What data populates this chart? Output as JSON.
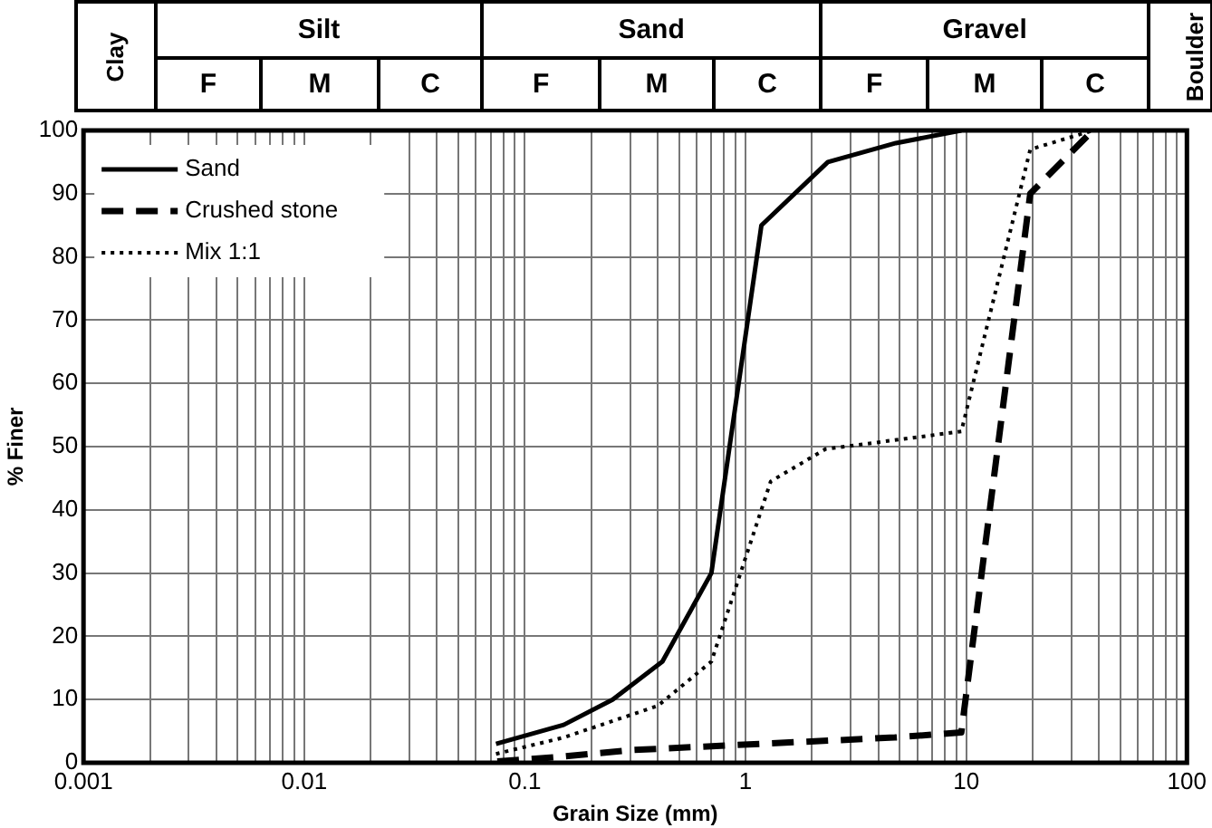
{
  "chart_data": {
    "type": "line",
    "xlabel": "Grain Size (mm)",
    "ylabel": "% Finer",
    "annotations": [
      "Clay",
      "Silt",
      "Sand",
      "Gravel",
      "Boulder",
      "F",
      "M",
      "C",
      "F",
      "M",
      "C",
      "F",
      "M",
      "C"
    ],
    "series": [
      {
        "name": "Sand",
        "color": "#000000",
        "line_style": "solid",
        "x": [
          0.074,
          0.15,
          0.25,
          0.42,
          0.7,
          1.18,
          2.36,
          4.8,
          9.5
        ],
        "values": [
          3,
          6,
          10,
          16,
          30,
          85,
          95,
          98,
          100
        ]
      },
      {
        "name": "Crushed stone",
        "color": "#000000",
        "line_style": "dashed",
        "x": [
          0.075,
          0.15,
          0.3,
          0.6,
          1.18,
          2.36,
          4.75,
          9.5,
          19.5,
          37.5
        ],
        "values": [
          0.2,
          1,
          2,
          2.5,
          3,
          3.5,
          4,
          4.8,
          90,
          100
        ]
      },
      {
        "name": "Mix 1:1",
        "color": "#000000",
        "line_style": "dotted",
        "x": [
          0.074,
          0.15,
          0.4,
          0.7,
          1.3,
          2.3,
          9.5,
          19.5,
          37.5
        ],
        "values": [
          1.4,
          4,
          9,
          16,
          44.5,
          49.6,
          52.4,
          97,
          100
        ]
      }
    ],
    "xlim": [
      0.001,
      100
    ],
    "ylim": [
      0,
      100
    ],
    "xticks": [
      0.001,
      {
        "value": 0.002,
        "label": null
      },
      {
        "value": 0.003,
        "label": null
      },
      {
        "value": 0.004,
        "label": null
      },
      {
        "value": 0.005,
        "label": null
      },
      {
        "value": 0.006,
        "label": null
      },
      {
        "value": 0.007,
        "label": null
      },
      {
        "value": 0.008,
        "label": null
      },
      {
        "value": 0.009,
        "label": null
      },
      0.01,
      {
        "value": 0.02,
        "label": null
      },
      {
        "value": 0.03,
        "label": null
      },
      {
        "value": 0.04,
        "label": null
      },
      {
        "value": 0.05,
        "label": null
      },
      {
        "value": 0.06,
        "label": null
      },
      {
        "value": 0.07,
        "label": null
      },
      {
        "value": 0.08,
        "label": null
      },
      {
        "value": 0.09,
        "label": null
      },
      0.1,
      {
        "value": 0.2,
        "label": null
      },
      {
        "value": 0.3,
        "label": null
      },
      {
        "value": 0.4,
        "label": null
      },
      {
        "value": 0.5,
        "label": null
      },
      {
        "value": 0.6,
        "label": null
      },
      {
        "value": 0.7,
        "label": null
      },
      {
        "value": 0.8,
        "label": null
      },
      {
        "value": 0.9,
        "label": null
      },
      1,
      {
        "value": 2,
        "label": null
      },
      {
        "value": 3,
        "label": null
      },
      {
        "value": 4,
        "label": null
      },
      {
        "value": 5,
        "label": null
      },
      {
        "value": 6,
        "label": null
      },
      {
        "value": 7,
        "label": null
      },
      {
        "value": 8,
        "label": null
      },
      {
        "value": 9,
        "label": null
      },
      10,
      {
        "value": 20,
        "label": null
      },
      {
        "value": 30,
        "label": null
      },
      {
        "value": 40,
        "label": null
      },
      {
        "value": 50,
        "label": null
      },
      {
        "value": 60,
        "label": null
      },
      {
        "value": 70,
        "label": null
      },
      {
        "value": 80,
        "label": null
      },
      {
        "value": 90,
        "label": null
      },
      100
    ],
    "yticks": [
      0,
      10,
      20,
      30,
      40,
      50,
      60,
      70,
      80,
      90,
      100
    ],
    "log": "x",
    "grid": true,
    "legend": "top left",
    "marker": "none"
  }
}
